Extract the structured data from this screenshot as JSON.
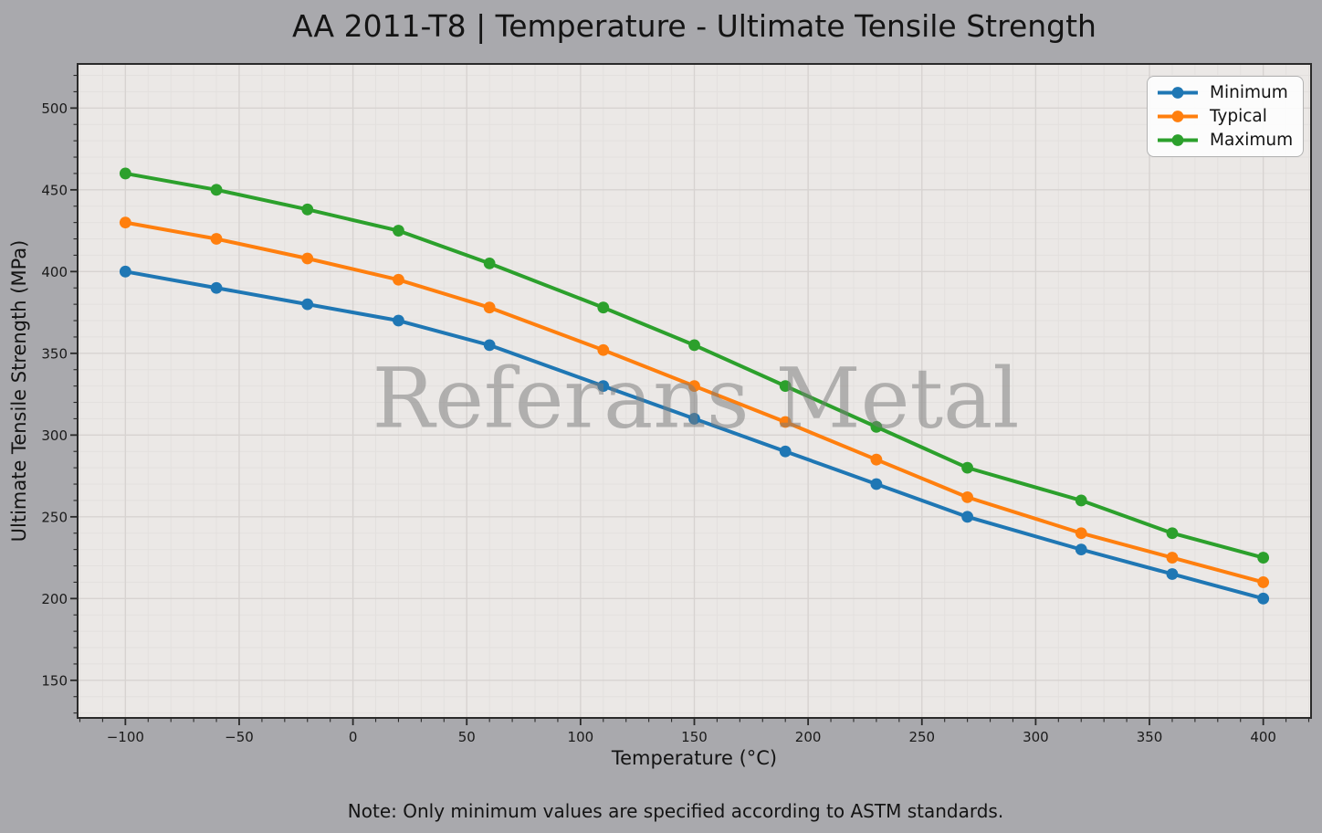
{
  "title": "AA 2011-T8 | Temperature - Ultimate Tensile Strength",
  "note": "Note: Only minimum values are specified according to ASTM standards.",
  "watermark": "Referans Metal",
  "colors": {
    "figure_bg": "#a9a9ad",
    "plot_bg": "#ebe8e6",
    "grid_major": "#d7d3d1",
    "grid_minor": "#e3e0de",
    "spine": "#2a2a2a",
    "tick_text": "#1a1a1a",
    "legend_bg": "#fdfdfd",
    "legend_border": "#b2b2b2",
    "series_minimum": "#1f77b4",
    "series_typical": "#ff7f0e",
    "series_maximum": "#2ca02c",
    "watermark_gray": "#7a7a7a"
  },
  "chart_data": {
    "type": "line",
    "title": "AA 2011-T8 | Temperature - Ultimate Tensile Strength",
    "xlabel": "Temperature (°C)",
    "ylabel": "Ultimate Tensile Strength (MPa)",
    "x": [
      -100,
      -60,
      -20,
      20,
      60,
      110,
      150,
      190,
      230,
      270,
      320,
      360,
      400
    ],
    "series": [
      {
        "name": "Minimum",
        "color": "#1f77b4",
        "values": [
          400,
          390,
          380,
          370,
          355,
          330,
          310,
          290,
          270,
          250,
          230,
          215,
          200
        ]
      },
      {
        "name": "Typical",
        "color": "#ff7f0e",
        "values": [
          430,
          420,
          408,
          395,
          378,
          352,
          330,
          308,
          285,
          262,
          240,
          225,
          210
        ]
      },
      {
        "name": "Maximum",
        "color": "#2ca02c",
        "values": [
          460,
          450,
          438,
          425,
          405,
          378,
          355,
          330,
          305,
          280,
          260,
          240,
          225
        ]
      }
    ],
    "xlim": [
      -121,
      421
    ],
    "ylim": [
      127,
      527
    ],
    "xticks": [
      -100,
      -50,
      0,
      50,
      100,
      150,
      200,
      250,
      300,
      350,
      400
    ],
    "xtick_labels": [
      "−100",
      "−50",
      "0",
      "50",
      "100",
      "150",
      "200",
      "250",
      "300",
      "350",
      "400"
    ],
    "yticks": [
      150,
      200,
      250,
      300,
      350,
      400,
      450,
      500
    ],
    "ytick_labels": [
      "150",
      "200",
      "250",
      "300",
      "350",
      "400",
      "450",
      "500"
    ],
    "minor_tick_step_x": 10,
    "minor_tick_step_y": 10,
    "grid": true,
    "legend_position": "upper right",
    "marker": "circle",
    "line_width": 4,
    "marker_radius": 6.4
  }
}
